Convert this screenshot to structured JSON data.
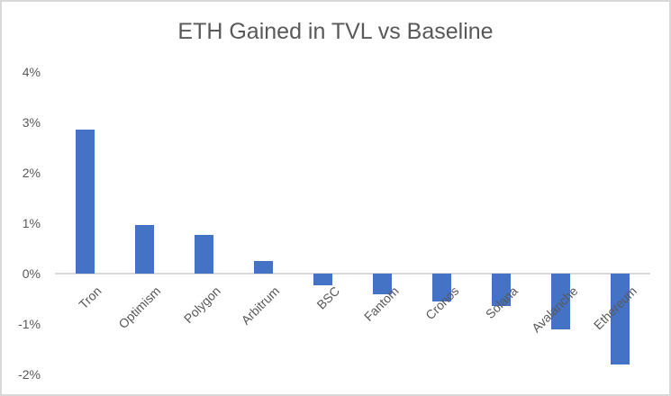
{
  "chart_data": {
    "type": "bar",
    "title": "ETH Gained in TVL vs Baseline",
    "categories": [
      "Tron",
      "Optimism",
      "Polygon",
      "Arbitrum",
      "BSC",
      "Fantom",
      "Cronos",
      "Solana",
      "Avalanche",
      "Ethereum"
    ],
    "values": [
      2.85,
      0.97,
      0.77,
      0.25,
      -0.24,
      -0.41,
      -0.55,
      -0.65,
      -1.1,
      -1.8
    ],
    "unit": "%",
    "xlabel": "",
    "ylabel": "",
    "ylim": [
      -2,
      4
    ],
    "ytick_step": 1,
    "ytick_labels": [
      "4%",
      "3%",
      "2%",
      "1%",
      "0%",
      "-1%",
      "-2%"
    ],
    "grid": "zero-line-only",
    "legend_position": "none",
    "bar_color": "#4472C4",
    "text_color": "#595959",
    "gridline_color": "#D9D9D9",
    "border_color": "#D9D9D9",
    "background_color": "#FFFFFF"
  }
}
